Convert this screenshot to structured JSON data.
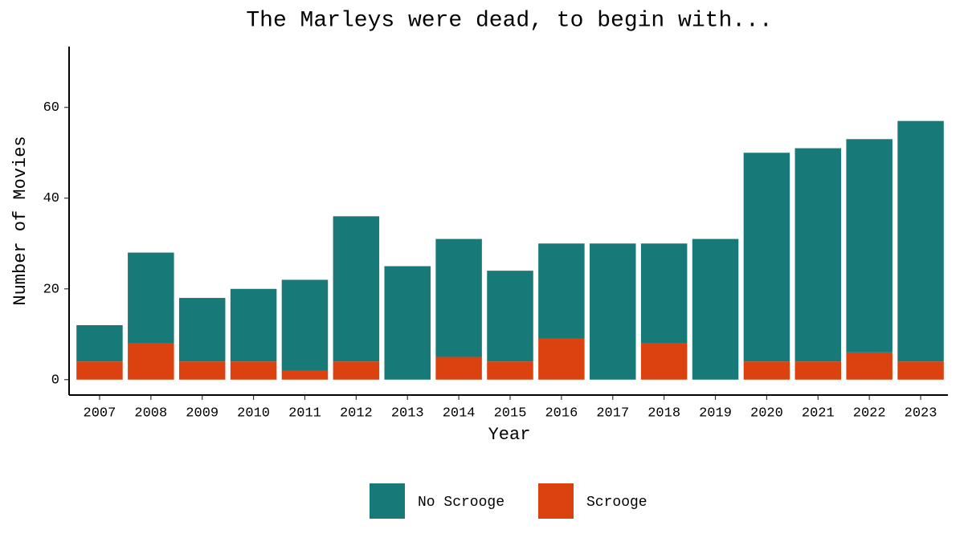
{
  "chart_data": {
    "type": "stacked_bar",
    "title": "The Marleys were dead, to begin with...",
    "x_label": "Year",
    "y_label": "Number of Movies",
    "categories": [
      "2007",
      "2008",
      "2009",
      "2010",
      "2011",
      "2012",
      "2013",
      "2014",
      "2015",
      "2016",
      "2017",
      "2018",
      "2019",
      "2020",
      "2021",
      "2022",
      "2023"
    ],
    "series": [
      {
        "name": "No Scrooge",
        "color": "#177a78",
        "values": [
          8,
          20,
          14,
          16,
          20,
          32,
          25,
          26,
          20,
          21,
          30,
          22,
          31,
          46,
          47,
          47,
          53
        ]
      },
      {
        "name": "Scrooge",
        "color": "#dc4110",
        "values": [
          4,
          8,
          4,
          4,
          2,
          4,
          0,
          5,
          4,
          9,
          0,
          8,
          0,
          4,
          4,
          6,
          4
        ]
      }
    ],
    "ylim": [
      -3.4,
      73.4
    ],
    "yticks": [
      0,
      20,
      40,
      60
    ],
    "legend": "bottom"
  }
}
